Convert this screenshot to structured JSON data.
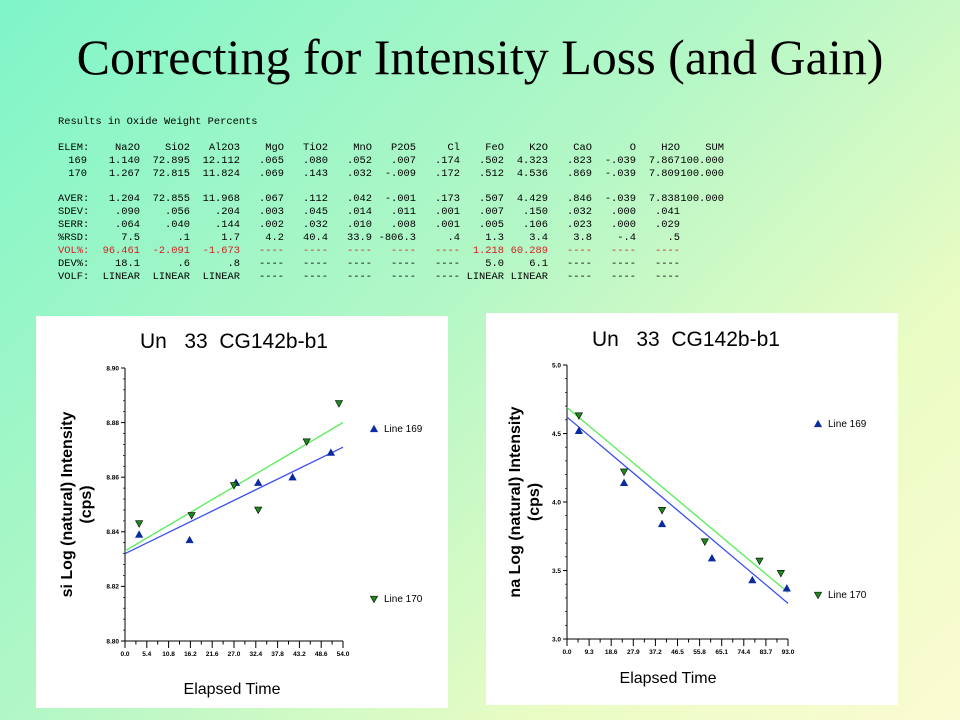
{
  "slide": {
    "title": "Correcting for Intensity Loss (and Gain)"
  },
  "results": {
    "heading": "Results in Oxide Weight Percents",
    "rows": [
      {
        "cells": [
          "ELEM:",
          "Na2O",
          "SiO2",
          "Al2O3",
          "MgO",
          "TiO2",
          "MnO",
          "P2O5",
          "Cl",
          "FeO",
          "K2O",
          "CaO",
          "O",
          "H2O",
          "SUM"
        ]
      },
      {
        "cells": [
          "169",
          "1.140",
          "72.895",
          "12.112",
          ".065",
          ".080",
          ".052",
          ".007",
          ".174",
          ".502",
          "4.323",
          ".823",
          "-.039",
          "7.867",
          "100.000"
        ]
      },
      {
        "cells": [
          "170",
          "1.267",
          "72.815",
          "11.824",
          ".069",
          ".143",
          ".032",
          "-.009",
          ".172",
          ".512",
          "4.536",
          ".869",
          "-.039",
          "7.809",
          "100.000"
        ]
      },
      {
        "blank": true
      },
      {
        "cells": [
          "AVER:",
          "1.204",
          "72.855",
          "11.968",
          ".067",
          ".112",
          ".042",
          "-.001",
          ".173",
          ".507",
          "4.429",
          ".846",
          "-.039",
          "7.838",
          "100.000"
        ]
      },
      {
        "cells": [
          "SDEV:",
          ".090",
          ".056",
          ".204",
          ".003",
          ".045",
          ".014",
          ".011",
          ".001",
          ".007",
          ".150",
          ".032",
          ".000",
          ".041",
          ""
        ]
      },
      {
        "cells": [
          "SERR:",
          ".064",
          ".040",
          ".144",
          ".002",
          ".032",
          ".010",
          ".008",
          ".001",
          ".005",
          ".106",
          ".023",
          ".000",
          ".029",
          ""
        ]
      },
      {
        "cells": [
          "%RSD:",
          "7.5",
          ".1",
          "1.7",
          "4.2",
          "40.4",
          "33.9",
          "-806.3",
          ".4",
          "1.3",
          "3.4",
          "3.8",
          "-.4",
          ".5",
          ""
        ]
      },
      {
        "cells": [
          "VOL%:",
          "96.461",
          "-2.091",
          "-1.673",
          "----",
          "----",
          "----",
          "----",
          "----",
          "1.218",
          "60.289",
          "----",
          "----",
          "----",
          ""
        ],
        "color": "#d62020"
      },
      {
        "cells": [
          "DEV%:",
          "18.1",
          ".6",
          ".8",
          "----",
          "----",
          "----",
          "----",
          "----",
          "5.0",
          "6.1",
          "----",
          "----",
          "----",
          ""
        ]
      },
      {
        "cells": [
          "VOLF:",
          "LINEAR",
          "LINEAR",
          "LINEAR",
          "----",
          "----",
          "----",
          "----",
          "----",
          "LINEAR",
          "LINEAR",
          "----",
          "----",
          "----",
          ""
        ]
      }
    ]
  },
  "chart_data": [
    {
      "type": "scatter",
      "title": "Un   33  CG142b-b1",
      "ylabel": "si Log (natural) Intensity (cps)",
      "xlabel": "Elapsed Time",
      "x_ticks": [
        "0.0",
        "5.4",
        "10.8",
        "16.2",
        "21.6",
        "27.0",
        "32.4",
        "37.8",
        "43.2",
        "48.6",
        "54.0"
      ],
      "y_ticks": [
        "8.80",
        "8.82",
        "8.84",
        "8.86",
        "8.88",
        "8.90"
      ],
      "xlim": [
        0,
        54
      ],
      "ylim": [
        8.8,
        8.9
      ],
      "series": [
        {
          "name": "Line 169",
          "color": "#0a2aa0",
          "line_color": "#3a4ef0",
          "marker": "triangle-up",
          "x": [
            3.5,
            16.0,
            27.5,
            33.0,
            41.5,
            51.0
          ],
          "y": [
            8.839,
            8.837,
            8.858,
            8.858,
            8.86,
            8.869
          ],
          "fit": [
            [
              0,
              8.832
            ],
            [
              54,
              8.871
            ]
          ]
        },
        {
          "name": "Line 170",
          "color": "#1a8a1a",
          "line_color": "#55ee55",
          "marker": "triangle-down",
          "x": [
            3.5,
            16.5,
            27.0,
            33.0,
            45.0,
            53.0
          ],
          "y": [
            8.843,
            8.846,
            8.857,
            8.848,
            8.873,
            8.887
          ],
          "fit": [
            [
              0,
              8.833
            ],
            [
              54,
              8.88
            ]
          ]
        }
      ]
    },
    {
      "type": "scatter",
      "title": "Un   33  CG142b-b1",
      "ylabel": "na Log (natural) Intensity (cps)",
      "xlabel": "Elapsed Time",
      "x_ticks": [
        "0.0",
        "9.3",
        "18.6",
        "27.9",
        "37.2",
        "46.5",
        "55.8",
        "65.1",
        "74.4",
        "83.7",
        "93.0"
      ],
      "y_ticks": [
        "3.0",
        "3.5",
        "4.0",
        "4.5",
        "5.0"
      ],
      "xlim": [
        0,
        93
      ],
      "ylim": [
        3.0,
        5.0
      ],
      "series": [
        {
          "name": "Line 169",
          "color": "#0a2aa0",
          "line_color": "#3a4ef0",
          "marker": "triangle-up",
          "x": [
            5.0,
            24.0,
            40.0,
            61.0,
            78.0,
            92.5
          ],
          "y": [
            4.52,
            4.14,
            3.84,
            3.59,
            3.43,
            3.37
          ],
          "fit": [
            [
              0,
              4.62
            ],
            [
              93,
              3.26
            ]
          ]
        },
        {
          "name": "Line 170",
          "color": "#1a8a1a",
          "line_color": "#55ee55",
          "marker": "triangle-down",
          "x": [
            5.0,
            24.0,
            40.0,
            58.0,
            81.0,
            90.0
          ],
          "y": [
            4.63,
            4.22,
            3.94,
            3.71,
            3.57,
            3.48
          ],
          "fit": [
            [
              0,
              4.69
            ],
            [
              93,
              3.34
            ]
          ]
        }
      ]
    }
  ]
}
